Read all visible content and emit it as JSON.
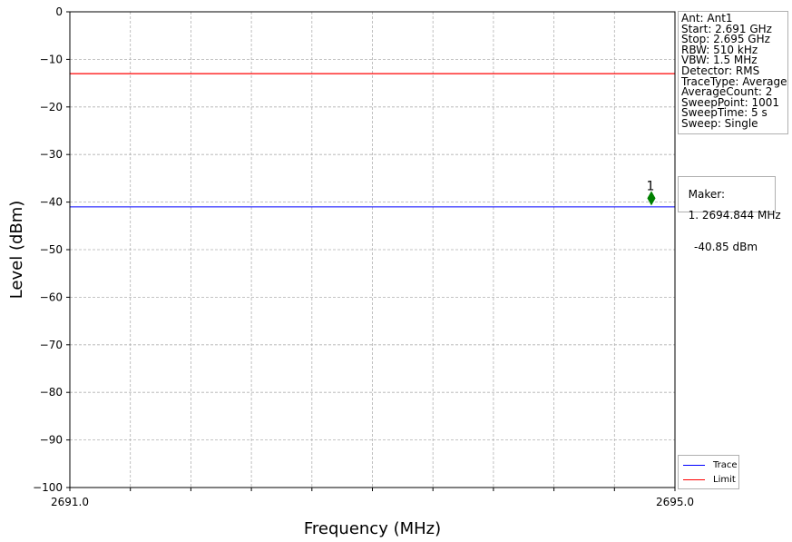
{
  "chart_data": {
    "type": "line",
    "xlabel": "Frequency (MHz)",
    "ylabel": "Level (dBm)",
    "xlim": [
      2691.0,
      2695.0
    ],
    "ylim": [
      -100,
      0
    ],
    "x_tick_labels": [
      "2691.0",
      "2695.0"
    ],
    "x_minor_ticks": [
      2691.4,
      2691.8,
      2692.2,
      2692.6,
      2693.0,
      2693.4,
      2693.8,
      2694.2,
      2694.6
    ],
    "y_ticks": [
      0,
      -10,
      -20,
      -30,
      -40,
      -50,
      -60,
      -70,
      -80,
      -90,
      -100
    ],
    "y_tick_labels": [
      "0",
      "−10",
      "−20",
      "−30",
      "−40",
      "−50",
      "−60",
      "−70",
      "−80",
      "−90",
      "−100"
    ],
    "grid": true,
    "series": [
      {
        "name": "Trace",
        "color": "#0000ff",
        "x": [
          2691.0,
          2695.0
        ],
        "y": [
          -41.0,
          -41.0
        ]
      },
      {
        "name": "Limit",
        "color": "#ff0000",
        "x": [
          2691.0,
          2695.0
        ],
        "y": [
          -13.0,
          -13.0
        ]
      }
    ],
    "marker": {
      "label": "1",
      "x": 2694.844,
      "y": -39.2,
      "color": "#008000"
    },
    "legend_position": "bottom-right, outside plot"
  },
  "settings": [
    "Ant: Ant1",
    "Start: 2.691 GHz",
    "Stop: 2.695 GHz",
    "RBW: 510 kHz",
    "VBW: 1.5 MHz",
    "Detector: RMS",
    "TraceType: Average",
    "AverageCount: 2",
    "SweepPoint: 1001",
    "SweepTime: 5 s",
    "Sweep: Single"
  ],
  "marker_info": {
    "title": "Maker:",
    "freq": "1. 2694.844 MHz",
    "level": "-40.85 dBm"
  },
  "legend": [
    {
      "label": "Trace",
      "color": "#0000ff"
    },
    {
      "label": "Limit",
      "color": "#ff0000"
    }
  ]
}
